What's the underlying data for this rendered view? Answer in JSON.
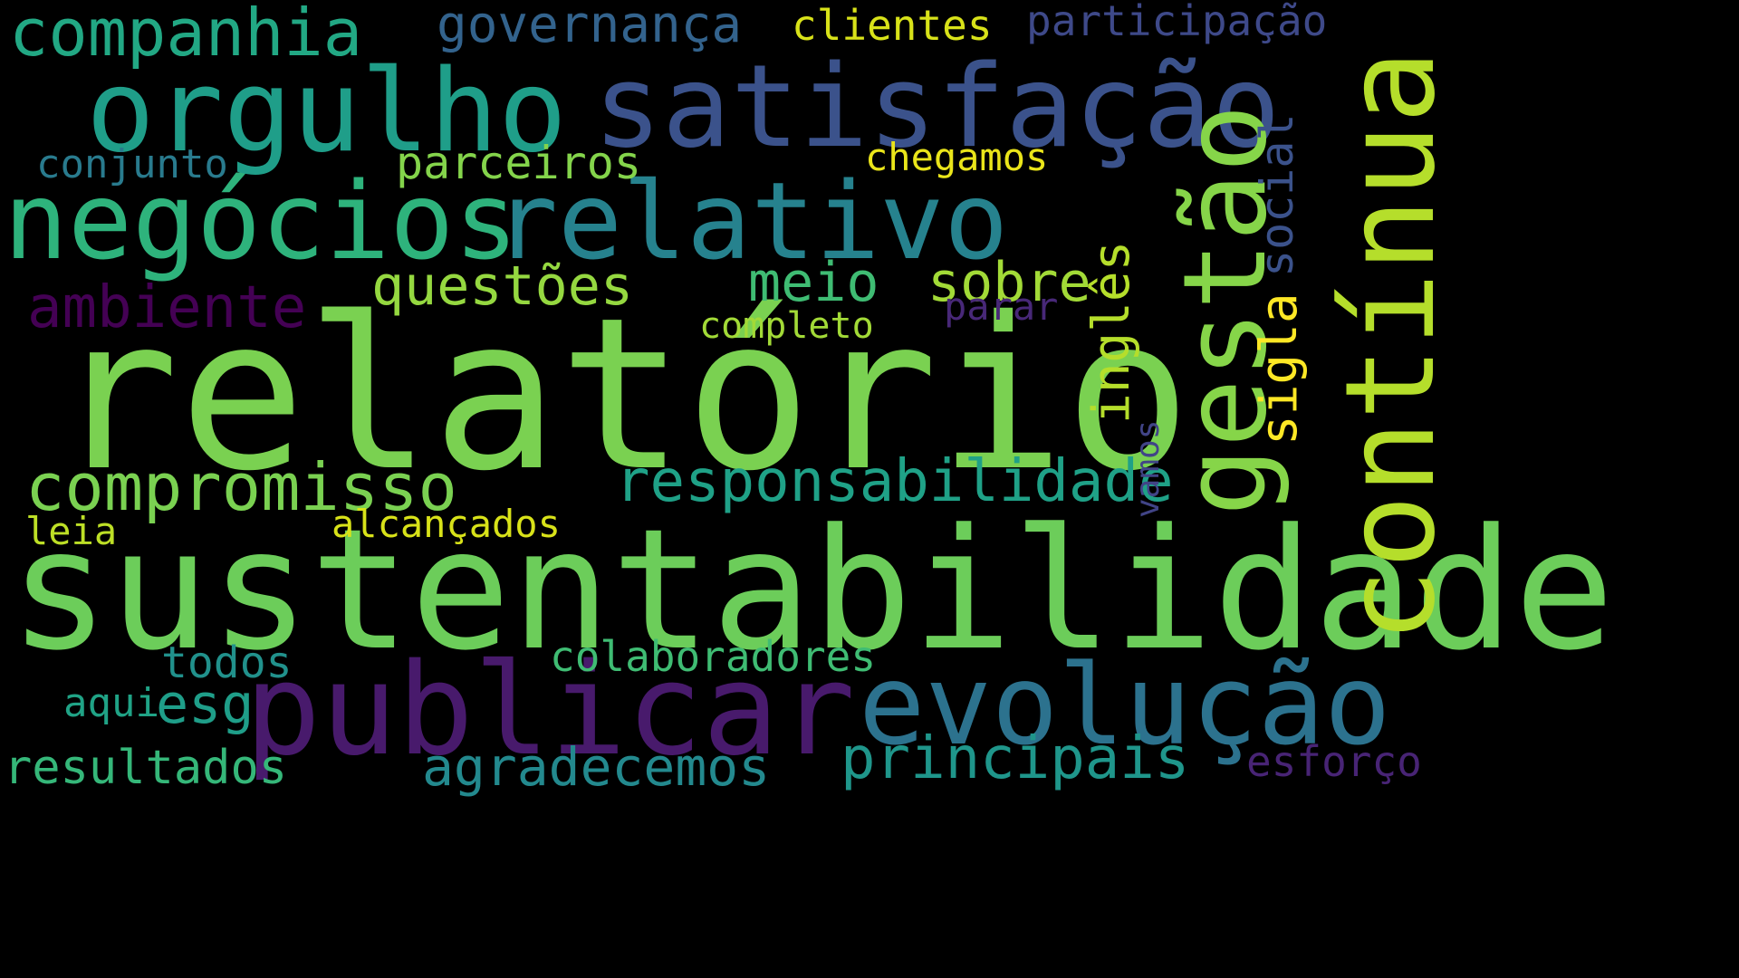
{
  "words": [
    {
      "text": "relatório",
      "color": "#7ad151"
    },
    {
      "text": "sustentabilidade",
      "color": "#6ccd5a"
    },
    {
      "text": "contínua",
      "color": "#b5de2b"
    },
    {
      "text": "gestão",
      "color": "#86d549"
    },
    {
      "text": "negócios",
      "color": "#2eb37c"
    },
    {
      "text": "relativo",
      "color": "#26828e"
    },
    {
      "text": "satisfação",
      "color": "#3b528b"
    },
    {
      "text": "orgulho",
      "color": "#1f9e89"
    },
    {
      "text": "publicar",
      "color": "#481a6c"
    },
    {
      "text": "evolução",
      "color": "#2c728e"
    },
    {
      "text": "companhia",
      "color": "#22a884"
    },
    {
      "text": "governança",
      "color": "#33638d"
    },
    {
      "text": "clientes",
      "color": "#d8e219"
    },
    {
      "text": "participação",
      "color": "#3e4989"
    },
    {
      "text": "compromisso",
      "color": "#7ad151"
    },
    {
      "text": "responsabilidade",
      "color": "#1fa187"
    },
    {
      "text": "ambiente",
      "color": "#440154"
    },
    {
      "text": "questões",
      "color": "#95d840"
    },
    {
      "text": "meio",
      "color": "#3fbc73"
    },
    {
      "text": "sobre",
      "color": "#a2da37"
    },
    {
      "text": "parceiros",
      "color": "#84d44b"
    },
    {
      "text": "conjunto",
      "color": "#297b8e"
    },
    {
      "text": "chegamos",
      "color": "#eae51a"
    },
    {
      "text": "completo",
      "color": "#a2da37"
    },
    {
      "text": "parar",
      "color": "#482878"
    },
    {
      "text": "inglês",
      "color": "#b5de2b"
    },
    {
      "text": "sigla",
      "color": "#fde725"
    },
    {
      "text": "social",
      "color": "#3b528b"
    },
    {
      "text": "vamos",
      "color": "#414487"
    },
    {
      "text": "alcançados",
      "color": "#d8e219"
    },
    {
      "text": "leia",
      "color": "#bddf26"
    },
    {
      "text": "colaboradores",
      "color": "#3fbc73"
    },
    {
      "text": "todos",
      "color": "#21918c"
    },
    {
      "text": "esg",
      "color": "#1f9e89"
    },
    {
      "text": "aqui",
      "color": "#20a386"
    },
    {
      "text": "principais",
      "color": "#1f968b"
    },
    {
      "text": "agradecemos",
      "color": "#23898e"
    },
    {
      "text": "resultados",
      "color": "#35b779"
    },
    {
      "text": "esforço",
      "color": "#482475"
    }
  ]
}
